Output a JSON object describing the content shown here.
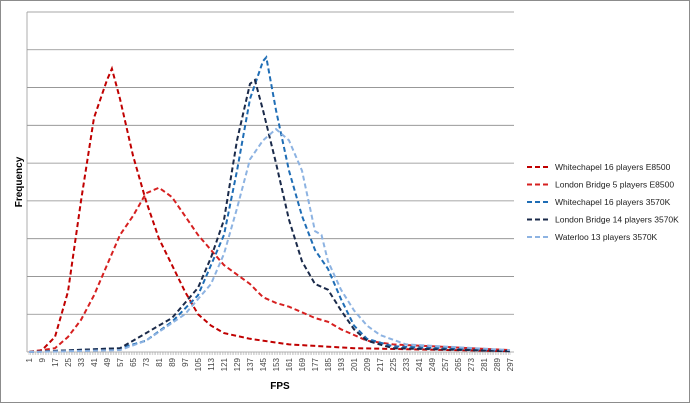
{
  "chart_data": {
    "type": "line",
    "title": "",
    "xlabel": "FPS",
    "ylabel": "Frequency",
    "xlim": [
      1,
      297
    ],
    "ylim": [
      0,
      9
    ],
    "grid": true,
    "legend_position": "right",
    "x_ticks": [
      "1",
      "9",
      "17",
      "25",
      "33",
      "41",
      "49",
      "57",
      "65",
      "73",
      "81",
      "89",
      "97",
      "105",
      "113",
      "121",
      "129",
      "137",
      "145",
      "153",
      "161",
      "169",
      "177",
      "185",
      "193",
      "201",
      "209",
      "217",
      "225",
      "233",
      "241",
      "249",
      "257",
      "265",
      "273",
      "281",
      "289",
      "297"
    ],
    "series": [
      {
        "name": "Whitechapel 16 players E8500",
        "color": "#c00000",
        "points": [
          [
            1,
            0
          ],
          [
            9,
            0.05
          ],
          [
            17,
            0.4
          ],
          [
            25,
            1.6
          ],
          [
            33,
            4
          ],
          [
            41,
            6.2
          ],
          [
            49,
            7.2
          ],
          [
            52,
            7.5
          ],
          [
            57,
            6.7
          ],
          [
            65,
            5.2
          ],
          [
            73,
            4
          ],
          [
            81,
            3
          ],
          [
            89,
            2.3
          ],
          [
            97,
            1.6
          ],
          [
            105,
            1
          ],
          [
            113,
            0.7
          ],
          [
            121,
            0.5
          ],
          [
            137,
            0.35
          ],
          [
            161,
            0.2
          ],
          [
            201,
            0.1
          ],
          [
            297,
            0.02
          ]
        ]
      },
      {
        "name": "London Bridge 5 players E8500",
        "color": "#d62020",
        "points": [
          [
            1,
            0
          ],
          [
            17,
            0.1
          ],
          [
            25,
            0.4
          ],
          [
            33,
            0.85
          ],
          [
            41,
            1.5
          ],
          [
            49,
            2.3
          ],
          [
            57,
            3.1
          ],
          [
            65,
            3.6
          ],
          [
            73,
            4.2
          ],
          [
            81,
            4.35
          ],
          [
            89,
            4.1
          ],
          [
            97,
            3.6
          ],
          [
            105,
            3.1
          ],
          [
            113,
            2.7
          ],
          [
            121,
            2.3
          ],
          [
            129,
            2.05
          ],
          [
            137,
            1.8
          ],
          [
            145,
            1.45
          ],
          [
            153,
            1.3
          ],
          [
            161,
            1.2
          ],
          [
            169,
            1.05
          ],
          [
            177,
            0.9
          ],
          [
            185,
            0.8
          ],
          [
            193,
            0.6
          ],
          [
            201,
            0.45
          ],
          [
            209,
            0.3
          ],
          [
            225,
            0.2
          ],
          [
            249,
            0.15
          ],
          [
            297,
            0.05
          ]
        ]
      },
      {
        "name": "Whitechapel 16 players 3570K",
        "color": "#1f6db5",
        "points": [
          [
            1,
            0
          ],
          [
            57,
            0.1
          ],
          [
            73,
            0.3
          ],
          [
            89,
            0.8
          ],
          [
            105,
            1.5
          ],
          [
            113,
            2.3
          ],
          [
            121,
            3.1
          ],
          [
            129,
            4.8
          ],
          [
            137,
            6.7
          ],
          [
            145,
            7.7
          ],
          [
            147,
            7.8
          ],
          [
            153,
            6.4
          ],
          [
            161,
            4.8
          ],
          [
            169,
            3.6
          ],
          [
            177,
            2.7
          ],
          [
            185,
            2.2
          ],
          [
            193,
            1.4
          ],
          [
            201,
            0.7
          ],
          [
            209,
            0.35
          ],
          [
            225,
            0.15
          ],
          [
            297,
            0.02
          ]
        ]
      },
      {
        "name": "London Bridge 14 players 3570K",
        "color": "#1a2a4a",
        "points": [
          [
            1,
            0
          ],
          [
            57,
            0.1
          ],
          [
            65,
            0.3
          ],
          [
            89,
            0.9
          ],
          [
            105,
            1.7
          ],
          [
            113,
            2.5
          ],
          [
            121,
            3.5
          ],
          [
            129,
            5.6
          ],
          [
            137,
            7.1
          ],
          [
            140,
            7.2
          ],
          [
            145,
            6.4
          ],
          [
            153,
            5
          ],
          [
            161,
            3.5
          ],
          [
            169,
            2.4
          ],
          [
            177,
            1.8
          ],
          [
            185,
            1.65
          ],
          [
            193,
            1.1
          ],
          [
            201,
            0.6
          ],
          [
            209,
            0.3
          ],
          [
            225,
            0.1
          ],
          [
            297,
            0.02
          ]
        ]
      },
      {
        "name": "Waterloo 13 players 3570K",
        "color": "#8db3e2",
        "points": [
          [
            1,
            0
          ],
          [
            57,
            0.05
          ],
          [
            73,
            0.3
          ],
          [
            97,
            1
          ],
          [
            113,
            1.8
          ],
          [
            121,
            2.6
          ],
          [
            129,
            3.8
          ],
          [
            137,
            5.1
          ],
          [
            145,
            5.6
          ],
          [
            153,
            5.9
          ],
          [
            161,
            5.6
          ],
          [
            169,
            4.8
          ],
          [
            177,
            3.2
          ],
          [
            181,
            3.1
          ],
          [
            185,
            2.4
          ],
          [
            193,
            1.65
          ],
          [
            201,
            1.1
          ],
          [
            209,
            0.7
          ],
          [
            217,
            0.45
          ],
          [
            233,
            0.2
          ],
          [
            297,
            0.05
          ]
        ]
      }
    ]
  }
}
